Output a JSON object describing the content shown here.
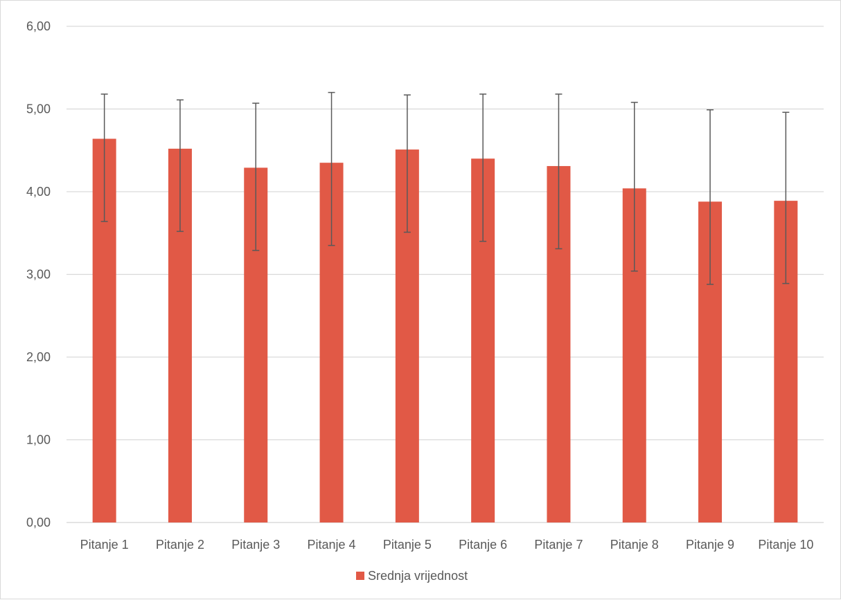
{
  "chart_data": {
    "type": "bar",
    "categories": [
      "Pitanje 1",
      "Pitanje 2",
      "Pitanje 3",
      "Pitanje 4",
      "Pitanje 5",
      "Pitanje 6",
      "Pitanje 7",
      "Pitanje 8",
      "Pitanje 9",
      "Pitanje 10"
    ],
    "series": [
      {
        "name": "Srednja vrijednost",
        "color": "#e15946",
        "values": [
          4.64,
          4.52,
          4.29,
          4.35,
          4.51,
          4.4,
          4.31,
          4.04,
          3.88,
          3.89
        ],
        "error_low": [
          3.64,
          3.52,
          3.29,
          3.35,
          3.51,
          3.4,
          3.31,
          3.04,
          2.88,
          2.89
        ],
        "error_high": [
          5.18,
          5.11,
          5.07,
          5.2,
          5.17,
          5.18,
          5.18,
          5.08,
          4.99,
          4.96
        ]
      }
    ],
    "ylim": [
      0,
      6
    ],
    "yticks": [
      "0,00",
      "1,00",
      "2,00",
      "3,00",
      "4,00",
      "5,00",
      "6,00"
    ],
    "grid": true,
    "legend": "bottom-center",
    "gridColor": "#d9d9d9",
    "errorBarColor": "#595959"
  }
}
